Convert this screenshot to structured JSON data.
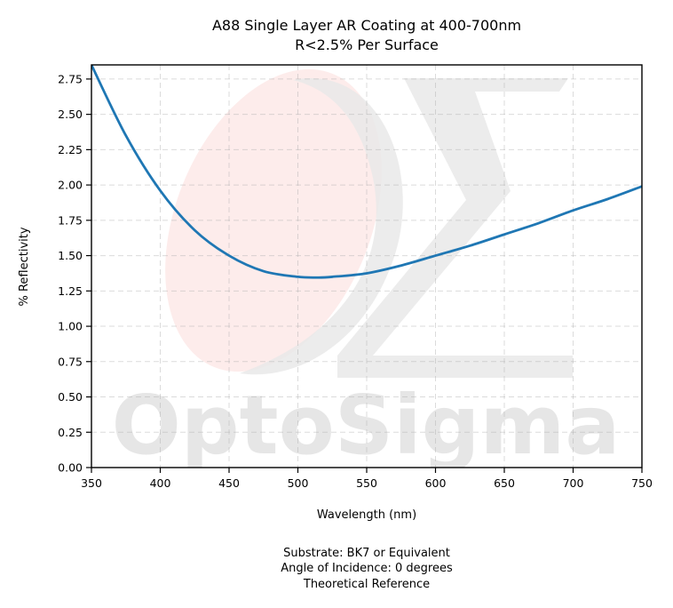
{
  "chart_data": {
    "type": "line",
    "title_lines": [
      "A88 Single Layer AR Coating at 400-700nm",
      "R<2.5% Per Surface"
    ],
    "xlabel": "Wavelength (nm)",
    "ylabel": "% Reflectivity",
    "xlim": [
      350,
      750
    ],
    "ylim": [
      0,
      2.85
    ],
    "x_ticks": [
      350,
      400,
      450,
      500,
      550,
      600,
      650,
      700,
      750
    ],
    "y_ticks": [
      0.0,
      0.25,
      0.5,
      0.75,
      1.0,
      1.25,
      1.5,
      1.75,
      2.0,
      2.25,
      2.5,
      2.75
    ],
    "grid": true,
    "series": [
      {
        "color": "#1f77b4",
        "x": [
          350,
          375,
          400,
          425,
          450,
          475,
          500,
          515,
          525,
          550,
          575,
          600,
          625,
          650,
          675,
          700,
          725,
          750
        ],
        "y": [
          2.85,
          2.35,
          1.96,
          1.68,
          1.5,
          1.39,
          1.35,
          1.345,
          1.35,
          1.375,
          1.43,
          1.5,
          1.57,
          1.65,
          1.73,
          1.82,
          1.9,
          1.99
        ]
      }
    ],
    "footnotes": [
      "Substrate: BK7 or Equivalent",
      "Angle of Incidence: 0 degrees",
      "Theoretical Reference"
    ]
  },
  "watermark": {
    "text": "OptoSigma",
    "color": "#e6e6e6",
    "accent": "#fdeceb"
  }
}
